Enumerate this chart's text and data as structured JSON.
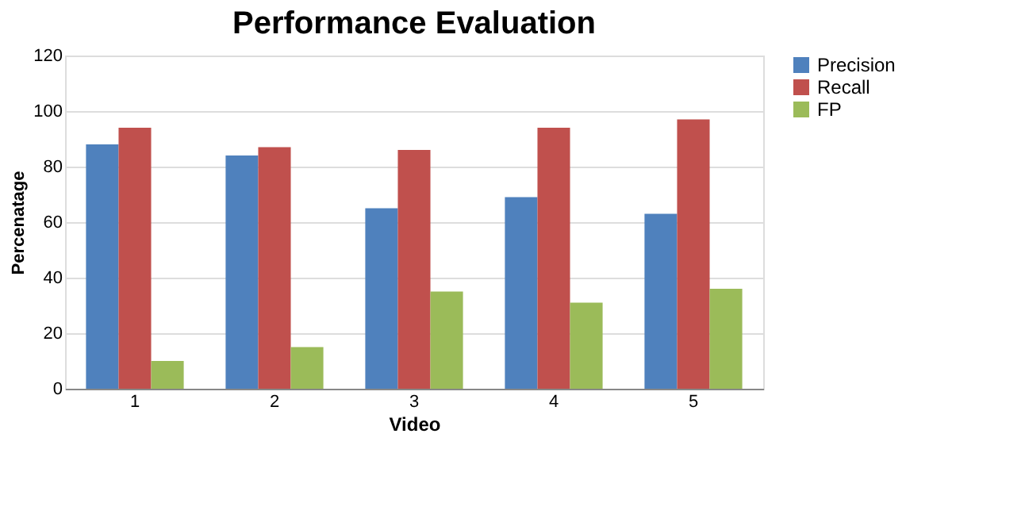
{
  "chart_data": {
    "type": "bar",
    "title": "Performance Evaluation",
    "xlabel": "Video",
    "ylabel": "Percenatage",
    "categories": [
      "1",
      "2",
      "3",
      "4",
      "5"
    ],
    "series": [
      {
        "name": "Precision",
        "color": "#4f81bd",
        "values": [
          88,
          84,
          65,
          69,
          63
        ]
      },
      {
        "name": "Recall",
        "color": "#c0504d",
        "values": [
          94,
          87,
          86,
          94,
          97
        ]
      },
      {
        "name": "FP",
        "color": "#9bbb59",
        "values": [
          10,
          15,
          35,
          31,
          36
        ]
      }
    ],
    "ylim": [
      0,
      120
    ],
    "yticks": [
      0,
      20,
      40,
      60,
      80,
      100,
      120
    ],
    "grid": "y",
    "legend": "right"
  }
}
